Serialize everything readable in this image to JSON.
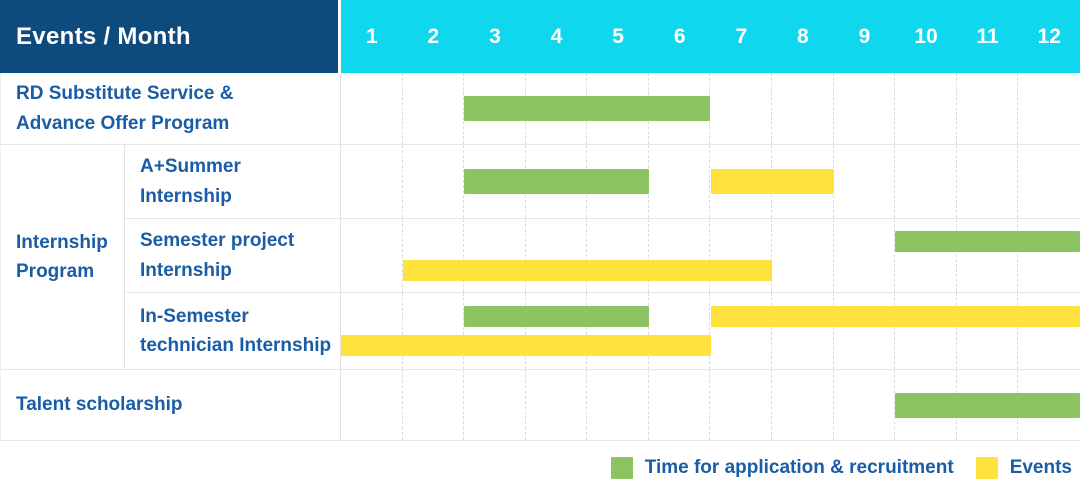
{
  "header": {
    "title": "Events / Month",
    "months": [
      "1",
      "2",
      "3",
      "4",
      "5",
      "6",
      "7",
      "8",
      "9",
      "10",
      "11",
      "12"
    ]
  },
  "colors": {
    "header_bg": "#0F4A7D",
    "months_bg": "#0FD7EE",
    "label_text": "#1A5DA6",
    "application": "#8CC363",
    "event": "#FFE23E"
  },
  "sections": [
    {
      "type": "single",
      "row": {
        "name": "rd-substitute",
        "label_lines": [
          "RD Substitute Service &",
          "Advance Offer Program"
        ],
        "tracks": [
          [
            {
              "role": "application",
              "start_month": 3,
              "end_month": 6
            }
          ]
        ]
      }
    },
    {
      "type": "group",
      "name": "internship-program",
      "label_lines": [
        "Internship",
        "Program"
      ],
      "rows": [
        {
          "name": "a-summer",
          "label_lines": [
            "A+Summer",
            "Internship"
          ],
          "tracks": [
            [
              {
                "role": "application",
                "start_month": 3,
                "end_month": 5
              },
              {
                "role": "event",
                "start_month": 7,
                "end_month": 8
              }
            ]
          ]
        },
        {
          "name": "semester-project",
          "label_lines": [
            "Semester project",
            "Internship"
          ],
          "tracks": [
            [
              {
                "role": "application",
                "start_month": 10,
                "end_month": 12
              }
            ],
            [
              {
                "role": "event",
                "start_month": 2,
                "end_month": 7
              }
            ]
          ]
        },
        {
          "name": "in-semester",
          "label_lines": [
            "In-Semester",
            "technician Internship"
          ],
          "tracks": [
            [
              {
                "role": "application",
                "start_month": 3,
                "end_month": 5
              },
              {
                "role": "event",
                "start_month": 7,
                "end_month": 12
              }
            ],
            [
              {
                "role": "event",
                "start_month": 1,
                "end_month": 6
              }
            ]
          ]
        }
      ]
    },
    {
      "type": "single",
      "row": {
        "name": "talent-scholarship",
        "label_lines": [
          "Talent scholarship"
        ],
        "tracks": [
          [
            {
              "role": "application",
              "start_month": 10,
              "end_month": 12
            }
          ]
        ]
      }
    }
  ],
  "legend": {
    "items": [
      {
        "role": "application",
        "label": "Time for application & recruitment"
      },
      {
        "role": "event",
        "label": "Events"
      }
    ]
  },
  "chart_data": {
    "type": "bar",
    "subtype": "gantt",
    "title": "Events / Month",
    "x_axis": {
      "label": "Month",
      "ticks": [
        1,
        2,
        3,
        4,
        5,
        6,
        7,
        8,
        9,
        10,
        11,
        12
      ],
      "range": [
        1,
        12
      ],
      "grid": true
    },
    "legend_position": "bottom-right",
    "series_colors": {
      "Time for application & recruitment": "#8CC363",
      "Events": "#FFE23E"
    },
    "rows": [
      {
        "label": "RD Substitute Service & Advance Offer Program",
        "group": null,
        "bars": [
          {
            "series": "Time for application & recruitment",
            "start_month": 3,
            "end_month": 6
          }
        ]
      },
      {
        "label": "A+Summer Internship",
        "group": "Internship Program",
        "bars": [
          {
            "series": "Time for application & recruitment",
            "start_month": 3,
            "end_month": 5
          },
          {
            "series": "Events",
            "start_month": 7,
            "end_month": 8
          }
        ]
      },
      {
        "label": "Semester project Internship",
        "group": "Internship Program",
        "bars": [
          {
            "series": "Time for application & recruitment",
            "start_month": 10,
            "end_month": 12
          },
          {
            "series": "Events",
            "start_month": 2,
            "end_month": 7
          }
        ]
      },
      {
        "label": "In-Semester technician Internship",
        "group": "Internship Program",
        "bars": [
          {
            "series": "Time for application & recruitment",
            "start_month": 3,
            "end_month": 5
          },
          {
            "series": "Events",
            "start_month": 7,
            "end_month": 12
          },
          {
            "series": "Events",
            "start_month": 1,
            "end_month": 6
          }
        ]
      },
      {
        "label": "Talent scholarship",
        "group": null,
        "bars": [
          {
            "series": "Time for application & recruitment",
            "start_month": 10,
            "end_month": 12
          }
        ]
      }
    ]
  }
}
